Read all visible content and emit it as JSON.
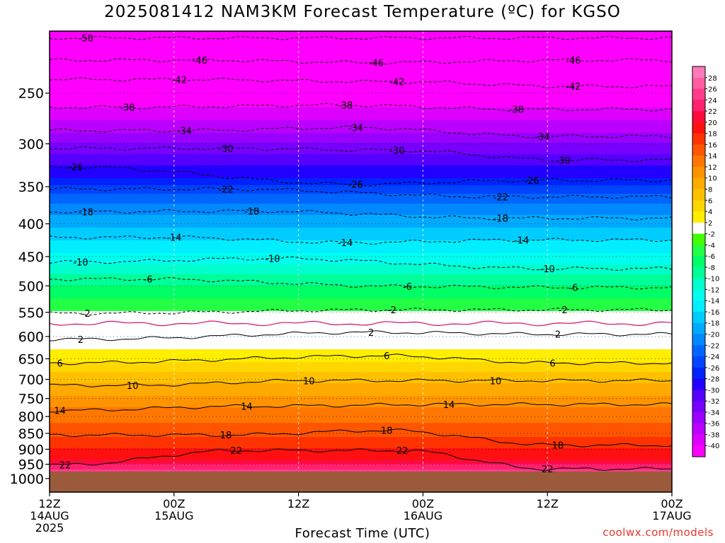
{
  "chart_data": {
    "type": "heatmap",
    "title": "2025081412 NAM3KM Forecast Temperature (ºC) for KGSO",
    "xlabel": "Forecast Time (UTC)",
    "ylabel": "",
    "x_ticks": [
      {
        "hours": 0,
        "label1": "12Z",
        "label2": "14AUG",
        "label3": "2025"
      },
      {
        "hours": 12,
        "label1": "00Z",
        "label2": "15AUG",
        "label3": ""
      },
      {
        "hours": 24,
        "label1": "12Z",
        "label2": "",
        "label3": ""
      },
      {
        "hours": 36,
        "label1": "00Z",
        "label2": "16AUG",
        "label3": ""
      },
      {
        "hours": 48,
        "label1": "12Z",
        "label2": "",
        "label3": ""
      },
      {
        "hours": 60,
        "label1": "00Z",
        "label2": "17AUG",
        "label3": ""
      }
    ],
    "xlim": [
      0,
      60
    ],
    "y_scale": "log-pressure (hPa), inverted",
    "ylim": [
      1050,
      200
    ],
    "y_ticks": [
      250,
      300,
      350,
      400,
      450,
      500,
      550,
      600,
      650,
      700,
      750,
      800,
      850,
      900,
      950,
      1000
    ],
    "ground_pressure": 975,
    "colorbar": {
      "levels": [
        28,
        26,
        24,
        22,
        20,
        18,
        16,
        14,
        12,
        10,
        8,
        6,
        4,
        2,
        -2,
        -4,
        -6,
        -8,
        -10,
        -12,
        -14,
        -16,
        -18,
        -20,
        -22,
        -24,
        -26,
        -28,
        -30,
        -32,
        -34,
        -36,
        -38,
        -40
      ],
      "colors": [
        "#ff5fa0",
        "#ff3c8c",
        "#ff2070",
        "#ff0a3c",
        "#ff1010",
        "#ff3300",
        "#ff5500",
        "#ff7700",
        "#ff9400",
        "#ffaa00",
        "#ffc000",
        "#ffd700",
        "#ffee00",
        "#ffffff",
        "#44ff00",
        "#22ff44",
        "#00ff66",
        "#00ff99",
        "#00ffcc",
        "#00ffee",
        "#00eeff",
        "#00ccff",
        "#00aaff",
        "#0088ff",
        "#0066ff",
        "#0044ff",
        "#0022ff",
        "#2200ff",
        "#5500ff",
        "#7700ff",
        "#9900ff",
        "#bb00ff",
        "#dd00ff",
        "#ff00ff"
      ]
    },
    "contour_labels": [
      {
        "value": -50,
        "x": 3.5,
        "p": 205,
        "text": "-50"
      },
      {
        "value": -46,
        "x": 14.5,
        "p": 222,
        "text": "-46"
      },
      {
        "value": -46,
        "x": 31.5,
        "p": 224,
        "text": "-46"
      },
      {
        "value": -46,
        "x": 50.5,
        "p": 222,
        "text": "-46"
      },
      {
        "value": -42,
        "x": 12.5,
        "p": 238,
        "text": "-42"
      },
      {
        "value": -42,
        "x": 33.5,
        "p": 240,
        "text": "-42"
      },
      {
        "value": -42,
        "x": 50.5,
        "p": 244,
        "text": "-42"
      },
      {
        "value": -38,
        "x": 7.5,
        "p": 263,
        "text": "-38"
      },
      {
        "value": -38,
        "x": 28.5,
        "p": 261,
        "text": "-38"
      },
      {
        "value": -38,
        "x": 45,
        "p": 265,
        "text": "-38"
      },
      {
        "value": -34,
        "x": 13,
        "p": 286,
        "text": "-34"
      },
      {
        "value": -34,
        "x": 29.5,
        "p": 283,
        "text": "-34"
      },
      {
        "value": -34,
        "x": 47.5,
        "p": 292,
        "text": "-34"
      },
      {
        "value": -30,
        "x": 17,
        "p": 305,
        "text": "-30"
      },
      {
        "value": -30,
        "x": 33.5,
        "p": 307,
        "text": "-30"
      },
      {
        "value": -30,
        "x": 49.5,
        "p": 318,
        "text": "-30"
      },
      {
        "value": -26,
        "x": 2.5,
        "p": 326,
        "text": "-26"
      },
      {
        "value": -26,
        "x": 29.5,
        "p": 347,
        "text": "-26"
      },
      {
        "value": -26,
        "x": 46.5,
        "p": 342,
        "text": "-26"
      },
      {
        "value": -22,
        "x": 17,
        "p": 353,
        "text": "-22"
      },
      {
        "value": -22,
        "x": 43.5,
        "p": 363,
        "text": "-22"
      },
      {
        "value": -18,
        "x": 3.5,
        "p": 383,
        "text": "-18"
      },
      {
        "value": -18,
        "x": 19.5,
        "p": 382,
        "text": "-18"
      },
      {
        "value": -18,
        "x": 43.5,
        "p": 392,
        "text": "-18"
      },
      {
        "value": -14,
        "x": 12,
        "p": 420,
        "text": "-14"
      },
      {
        "value": -14,
        "x": 28.5,
        "p": 428,
        "text": "-14"
      },
      {
        "value": -14,
        "x": 45.5,
        "p": 424,
        "text": "-14"
      },
      {
        "value": -10,
        "x": 3,
        "p": 459,
        "text": "-10"
      },
      {
        "value": -10,
        "x": 21.5,
        "p": 453,
        "text": "-10"
      },
      {
        "value": -10,
        "x": 48,
        "p": 470,
        "text": "-10"
      },
      {
        "value": -6,
        "x": 9.5,
        "p": 488,
        "text": "-6"
      },
      {
        "value": -6,
        "x": 34.5,
        "p": 501,
        "text": "-6"
      },
      {
        "value": -6,
        "x": 50.5,
        "p": 503,
        "text": "-6"
      },
      {
        "value": -2,
        "x": 3.5,
        "p": 552,
        "text": "-2"
      },
      {
        "value": -2,
        "x": 33,
        "p": 545,
        "text": "-2"
      },
      {
        "value": -2,
        "x": 49.5,
        "p": 545,
        "text": "-2"
      },
      {
        "value": 2,
        "x": 3,
        "p": 606,
        "text": "2"
      },
      {
        "value": 2,
        "x": 31,
        "p": 591,
        "text": "2"
      },
      {
        "value": 2,
        "x": 49,
        "p": 595,
        "text": "2"
      },
      {
        "value": 6,
        "x": 1,
        "p": 660,
        "text": "6"
      },
      {
        "value": 6,
        "x": 32.5,
        "p": 643,
        "text": "6"
      },
      {
        "value": 6,
        "x": 48.5,
        "p": 660,
        "text": "6"
      },
      {
        "value": 10,
        "x": 8,
        "p": 715,
        "text": "10"
      },
      {
        "value": 10,
        "x": 25,
        "p": 703,
        "text": "10"
      },
      {
        "value": 10,
        "x": 43,
        "p": 703,
        "text": "10"
      },
      {
        "value": 14,
        "x": 1,
        "p": 783,
        "text": "14"
      },
      {
        "value": 14,
        "x": 19,
        "p": 771,
        "text": "14"
      },
      {
        "value": 14,
        "x": 38.5,
        "p": 766,
        "text": "14"
      },
      {
        "value": 18,
        "x": 17,
        "p": 855,
        "text": "18"
      },
      {
        "value": 18,
        "x": 32.5,
        "p": 841,
        "text": "18"
      },
      {
        "value": 18,
        "x": 49,
        "p": 887,
        "text": "18"
      },
      {
        "value": 22,
        "x": 18,
        "p": 904,
        "text": "22"
      },
      {
        "value": 22,
        "x": 34,
        "p": 904,
        "text": "22"
      },
      {
        "value": 22,
        "x": 1.5,
        "p": 952,
        "text": "22"
      },
      {
        "value": 22,
        "x": 48,
        "p": 966,
        "text": "22"
      }
    ]
  },
  "credit": "coolwx.com/models"
}
